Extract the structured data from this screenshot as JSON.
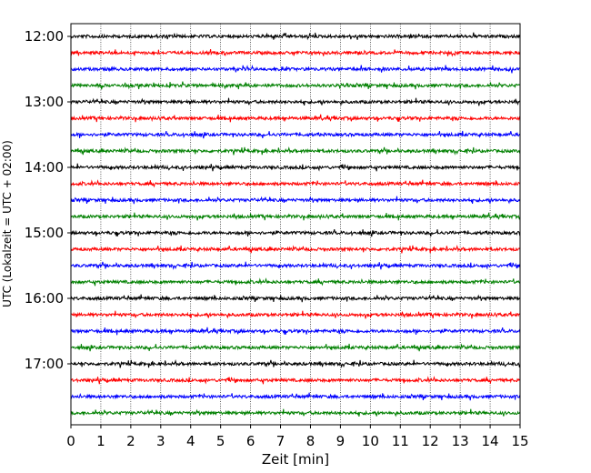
{
  "chart_data": {
    "type": "line",
    "xlabel": "Zeit  [min]",
    "ylabel": "UTC (Lokalzeit = UTC + 02:00)",
    "xlim": [
      0,
      15
    ],
    "x_ticks": [
      "0",
      "1",
      "2",
      "3",
      "4",
      "5",
      "6",
      "7",
      "8",
      "9",
      "10",
      "11",
      "12",
      "13",
      "14",
      "15"
    ],
    "y_ticks": [
      "12:00",
      "13:00",
      "14:00",
      "15:00",
      "16:00",
      "17:00"
    ],
    "grid": "vertical dotted",
    "trace_interval_minutes": 15,
    "start_time": "12:00",
    "end_time": "17:45",
    "colors": [
      "#000000",
      "#ff0000",
      "#0000ff",
      "#008000"
    ]
  }
}
